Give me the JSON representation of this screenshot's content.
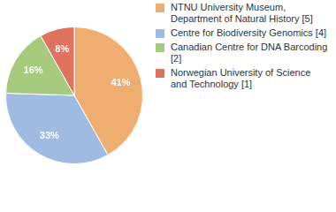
{
  "chart_data": {
    "type": "pie",
    "categories": [
      "NTNU University Museum, Department of Natural History [5]",
      "Centre for Biodiversity Genomics [4]",
      "Canadian Centre for DNA Barcoding [2]",
      "Norwegian University of Science and Technology [1]"
    ],
    "values": [
      41,
      33,
      16,
      8
    ],
    "value_labels": [
      "41%",
      "33%",
      "16%",
      "8%"
    ],
    "colors": [
      "#f0ad70",
      "#9fbbe1",
      "#a6cb7e",
      "#e0735f"
    ],
    "data_labels": true,
    "legend": "right"
  }
}
